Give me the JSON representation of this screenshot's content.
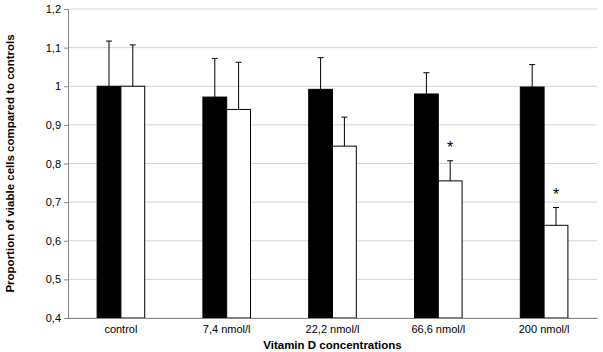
{
  "chart_data": {
    "type": "bar",
    "x_label": "Vitamin D concentrations",
    "y_label": "Proportion of viable cells compared to controls",
    "categories": [
      "control",
      "7,4 nmol/l",
      "22,2 nmol/l",
      "66,6 nmol/l",
      "200 nmol/l"
    ],
    "series": [
      {
        "color": "#000000",
        "values": [
          1.0,
          0.972,
          0.992,
          0.98,
          0.998
        ],
        "errors": [
          0.117,
          0.1,
          0.082,
          0.055,
          0.058
        ]
      },
      {
        "color": "#ffffff",
        "values": [
          1.0,
          0.94,
          0.845,
          0.755,
          0.64
        ],
        "errors": [
          0.107,
          0.122,
          0.075,
          0.052,
          0.046
        ],
        "annotations": [
          null,
          null,
          null,
          "*",
          "*"
        ]
      }
    ],
    "ylim": [
      0.4,
      1.2
    ],
    "yticks": [
      {
        "value": 0.4,
        "label": "0,4"
      },
      {
        "value": 0.5,
        "label": "0,5"
      },
      {
        "value": 0.6,
        "label": "0,6"
      },
      {
        "value": 0.7,
        "label": "0,7"
      },
      {
        "value": 0.8,
        "label": "0,8"
      },
      {
        "value": 0.9,
        "label": "0,9"
      },
      {
        "value": 1,
        "label": "1"
      },
      {
        "value": 1.1,
        "label": "1,1"
      },
      {
        "value": 1.2,
        "label": "1,2"
      }
    ],
    "grid": true
  }
}
